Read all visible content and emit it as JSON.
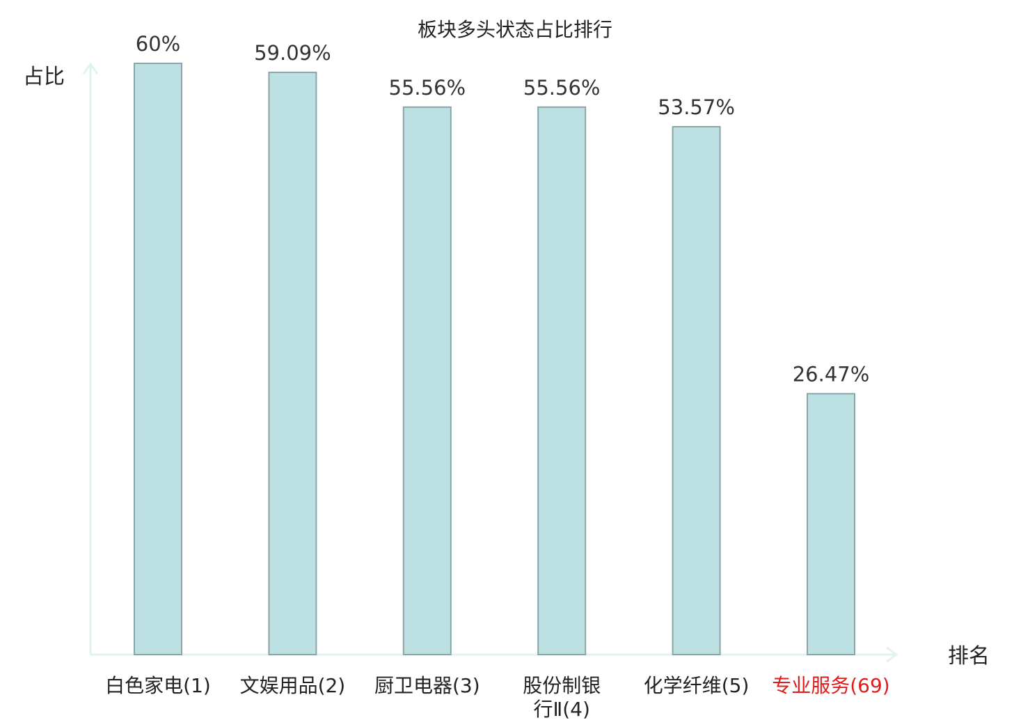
{
  "chart_data": {
    "type": "bar",
    "title": "板块多头状态占比排行",
    "ylabel": "占比",
    "xlabel": "排名",
    "categories": [
      [
        "白色家电(1)"
      ],
      [
        "文娱用品(2)"
      ],
      [
        "厨卫电器(3)"
      ],
      [
        "股份制银",
        "行Ⅱ(4)"
      ],
      [
        "化学纤维(5)"
      ],
      [
        "专业服务(69)"
      ]
    ],
    "values": [
      60,
      59.09,
      55.56,
      55.56,
      53.57,
      26.47
    ],
    "value_labels": [
      "60%",
      "59.09%",
      "55.56%",
      "55.56%",
      "53.57%",
      "26.47%"
    ],
    "highlight_index": 5,
    "ylim": [
      0,
      60
    ],
    "grid": false,
    "colors": {
      "bar_fill": "#bde1e3",
      "bar_stroke": "#8aa5a8",
      "axis": "#e0f3f1",
      "text": "#333333",
      "highlight_text": "#e31a1a"
    }
  }
}
